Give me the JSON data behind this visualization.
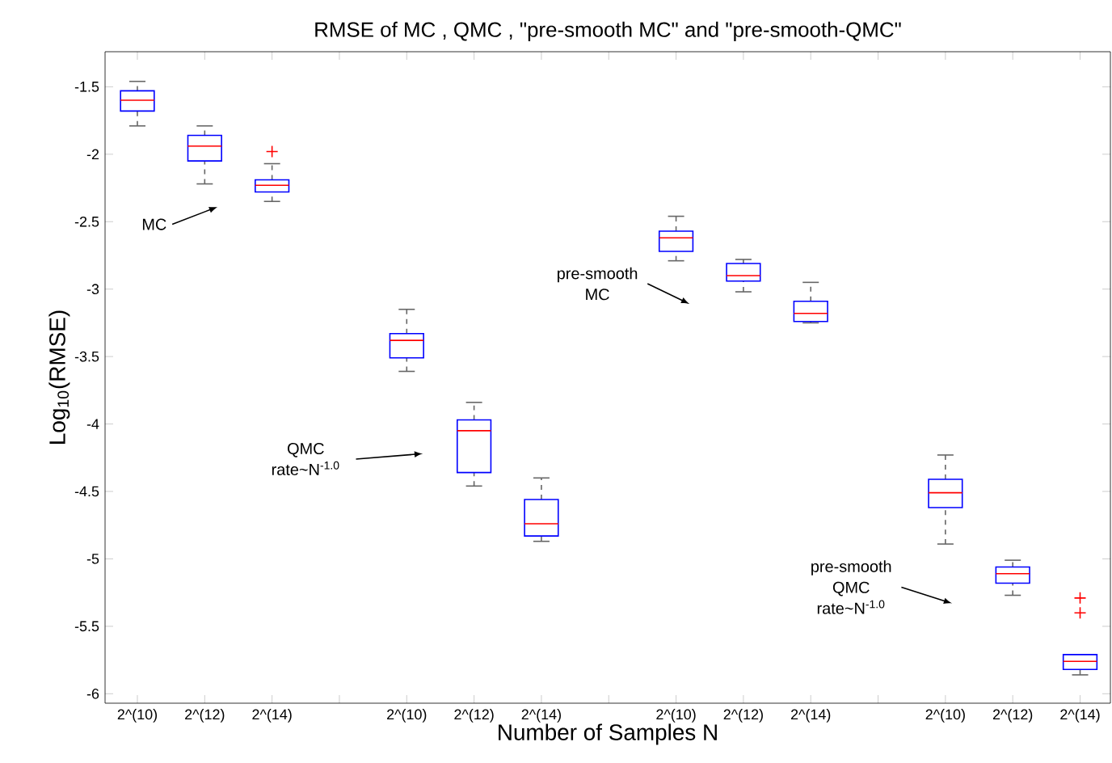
{
  "chart_data": {
    "type": "box",
    "title": "RMSE of MC , QMC , \"pre-smooth MC\" and \"pre-smooth-QMC\"",
    "xlabel": "Number of Samples N",
    "ylabel": "Log$_{10}$(RMSE)",
    "categories": [
      "2^(10)",
      "2^(12)",
      "2^(14)",
      null,
      "2^(10)",
      "2^(12)",
      "2^(14)",
      null,
      "2^(10)",
      "2^(12)",
      "2^(14)",
      null,
      "2^(10)",
      "2^(12)",
      "2^(14)"
    ],
    "color": "#0000ff",
    "boxes": [
      {
        "low": -1.79,
        "q1": -1.68,
        "median": -1.6,
        "q3": -1.53,
        "high": -1.46
      },
      {
        "low": -2.22,
        "q1": -2.05,
        "median": -1.94,
        "q3": -1.86,
        "high": -1.79
      },
      {
        "low": -2.35,
        "q1": -2.28,
        "median": -2.23,
        "q3": -2.19,
        "high": -2.07,
        "outliers": [
          -1.98
        ]
      },
      null,
      {
        "low": -3.61,
        "q1": -3.51,
        "median": -3.38,
        "q3": -3.33,
        "high": -3.15
      },
      {
        "low": -4.46,
        "q1": -4.36,
        "median": -4.05,
        "q3": -3.97,
        "high": -3.84
      },
      {
        "low": -4.87,
        "q1": -4.83,
        "median": -4.74,
        "q3": -4.56,
        "high": -4.4
      },
      null,
      {
        "low": -2.79,
        "q1": -2.72,
        "median": -2.62,
        "q3": -2.57,
        "high": -2.46
      },
      {
        "low": -3.02,
        "q1": -2.94,
        "median": -2.9,
        "q3": -2.81,
        "high": -2.78
      },
      {
        "low": -3.25,
        "q1": -3.24,
        "median": -3.18,
        "q3": -3.09,
        "high": -2.95
      },
      null,
      {
        "low": -4.89,
        "q1": -4.62,
        "median": -4.51,
        "q3": -4.41,
        "high": -4.23
      },
      {
        "low": -5.27,
        "q1": -5.18,
        "median": -5.11,
        "q3": -5.06,
        "high": -5.01
      },
      {
        "low": -5.86,
        "q1": -5.82,
        "median": -5.76,
        "q3": -5.71,
        "high": -5.71,
        "outliers": [
          -5.29,
          -5.4
        ]
      }
    ],
    "ylim": [
      -6.07,
      -1.24
    ],
    "yticks": [
      -1.5,
      -2,
      -2.5,
      -3,
      -3.5,
      -4,
      -4.5,
      -5,
      -5.5,
      -6
    ],
    "annotations": [
      "MC",
      "QMC rate~N$^{-1.0}$",
      "pre-smooth MC",
      "pre-smooth QMC rate~N$^{-1.0}$"
    ],
    "grid": false
  }
}
